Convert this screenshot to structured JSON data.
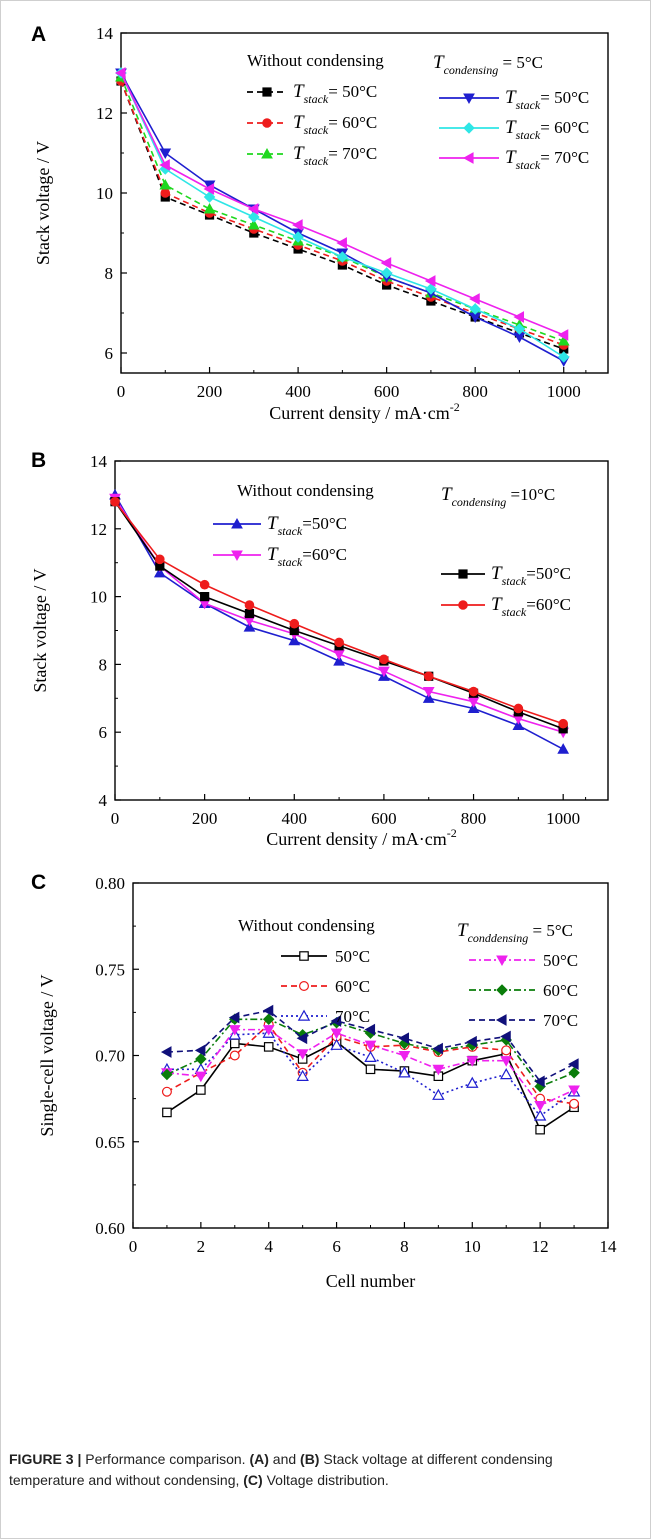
{
  "caption": {
    "label": "FIGURE 3 |",
    "t1": " Performance comparison. ",
    "b1": "(A)",
    "t2": " and ",
    "b2": "(B)",
    "t3": " Stack voltage at different condensing temperature and without condensing, ",
    "b3": "(C)",
    "t4": " Voltage distribution."
  },
  "colors": {
    "black": "#000000",
    "red": "#ee1c1c",
    "green": "#1fd81f",
    "blue": "#1f1fcf",
    "cyan": "#2ee6e6",
    "magenta": "#ee22ee",
    "dkgreen": "#0a7d0a",
    "navy": "#10107a"
  },
  "chart_data": [
    {
      "type": "line",
      "panel": "A",
      "xlabel": "Current density / mA·cm",
      "xlabel_sup": "-2",
      "ylabel": "Stack voltage / V",
      "xlim": [
        0,
        1100
      ],
      "ylim": [
        5.5,
        14
      ],
      "xticks": [
        0,
        200,
        400,
        600,
        800,
        1000
      ],
      "yticks": [
        6,
        8,
        10,
        12,
        14
      ],
      "grid": false,
      "legend_groups": [
        {
          "title": "Without condensing",
          "title_italic_sub": null,
          "position": "top-left"
        },
        {
          "title_T": "T",
          "title_sub": "condensing",
          "title_rest": " = 5°C",
          "position": "top-right"
        }
      ],
      "series": [
        {
          "name": "T",
          "sub": "stack",
          "rest": "= 50°C",
          "group": 0,
          "color": "black",
          "dash": true,
          "marker": "square",
          "x": [
            0,
            100,
            200,
            300,
            400,
            500,
            600,
            700,
            800,
            900,
            1000
          ],
          "y": [
            12.8,
            9.9,
            9.45,
            9.0,
            8.6,
            8.2,
            7.7,
            7.3,
            6.9,
            6.5,
            6.1
          ]
        },
        {
          "name": "T",
          "sub": "stack",
          "rest": "= 60°C",
          "group": 0,
          "color": "red",
          "dash": true,
          "marker": "circle",
          "x": [
            0,
            100,
            200,
            300,
            400,
            500,
            600,
            700,
            800,
            900,
            1000
          ],
          "y": [
            12.8,
            10.0,
            9.5,
            9.1,
            8.7,
            8.3,
            7.8,
            7.4,
            7.0,
            6.6,
            6.2
          ]
        },
        {
          "name": "T",
          "sub": "stack",
          "rest": "= 70°C",
          "group": 0,
          "color": "green",
          "dash": true,
          "marker": "triangle-up",
          "x": [
            0,
            100,
            200,
            300,
            400,
            500,
            600,
            700,
            800,
            900,
            1000
          ],
          "y": [
            12.9,
            10.2,
            9.6,
            9.2,
            8.8,
            8.4,
            7.9,
            7.5,
            7.1,
            6.7,
            6.3
          ]
        },
        {
          "name": "T",
          "sub": "stack",
          "rest": "= 50°C",
          "group": 1,
          "color": "blue",
          "dash": false,
          "marker": "triangle-down",
          "x": [
            0,
            100,
            200,
            300,
            400,
            500,
            600,
            700,
            800,
            900,
            1000
          ],
          "y": [
            13.0,
            11.0,
            10.2,
            9.6,
            9.0,
            8.5,
            7.9,
            7.5,
            6.9,
            6.4,
            5.8
          ]
        },
        {
          "name": "T",
          "sub": "stack",
          "rest": "= 60°C",
          "group": 1,
          "color": "cyan",
          "dash": false,
          "marker": "diamond",
          "x": [
            0,
            100,
            200,
            300,
            400,
            500,
            600,
            700,
            800,
            900,
            1000
          ],
          "y": [
            13.0,
            10.6,
            9.9,
            9.4,
            8.9,
            8.4,
            8.0,
            7.6,
            7.1,
            6.6,
            5.9
          ]
        },
        {
          "name": "T",
          "sub": "stack",
          "rest": "= 70°C",
          "group": 1,
          "color": "magenta",
          "dash": false,
          "marker": "triangle-left",
          "x": [
            0,
            100,
            200,
            300,
            400,
            500,
            600,
            700,
            800,
            900,
            1000
          ],
          "y": [
            13.0,
            10.7,
            10.1,
            9.6,
            9.2,
            8.75,
            8.25,
            7.8,
            7.35,
            6.9,
            6.45
          ]
        }
      ]
    },
    {
      "type": "line",
      "panel": "B",
      "xlabel": "Current density / mA·cm",
      "xlabel_sup": "-2",
      "ylabel": "Stack voltage / V",
      "xlim": [
        0,
        1100
      ],
      "ylim": [
        4,
        14
      ],
      "xticks": [
        0,
        200,
        400,
        600,
        800,
        1000
      ],
      "yticks": [
        4,
        6,
        8,
        10,
        12,
        14
      ],
      "grid": false,
      "legend_groups": [
        {
          "title": "Without condensing",
          "position": "top-left"
        },
        {
          "title_T": "T",
          "title_sub": "condensing",
          "title_rest": " =10°C",
          "position": "top-right"
        }
      ],
      "series": [
        {
          "name": "T",
          "sub": "stack",
          "rest": "=50°C",
          "group": 0,
          "color": "blue",
          "dash": false,
          "marker": "triangle-up",
          "x": [
            0,
            100,
            200,
            300,
            400,
            500,
            600,
            700,
            800,
            900,
            1000
          ],
          "y": [
            13.0,
            10.7,
            9.8,
            9.1,
            8.7,
            8.1,
            7.65,
            7.0,
            6.7,
            6.2,
            5.5
          ]
        },
        {
          "name": "T",
          "sub": "stack",
          "rest": "=60°C",
          "group": 0,
          "color": "magenta",
          "dash": false,
          "marker": "triangle-down",
          "x": [
            0,
            100,
            200,
            300,
            400,
            500,
            600,
            700,
            800,
            900,
            1000
          ],
          "y": [
            12.9,
            10.9,
            9.8,
            9.3,
            8.9,
            8.3,
            7.8,
            7.2,
            6.9,
            6.4,
            6.0
          ]
        },
        {
          "name": "T",
          "sub": "stack",
          "rest": "=50°C",
          "group": 1,
          "color": "black",
          "dash": false,
          "marker": "square",
          "x": [
            0,
            100,
            200,
            300,
            400,
            500,
            600,
            700,
            800,
            900,
            1000
          ],
          "y": [
            12.8,
            10.9,
            10.0,
            9.5,
            9.0,
            8.55,
            8.1,
            7.65,
            7.15,
            6.6,
            6.1
          ]
        },
        {
          "name": "T",
          "sub": "stack",
          "rest": "=60°C",
          "group": 1,
          "color": "red",
          "dash": false,
          "marker": "circle",
          "x": [
            0,
            100,
            200,
            300,
            400,
            500,
            600,
            700,
            800,
            900,
            1000
          ],
          "y": [
            12.8,
            11.1,
            10.35,
            9.75,
            9.2,
            8.65,
            8.15,
            7.65,
            7.2,
            6.7,
            6.25
          ]
        }
      ]
    },
    {
      "type": "line",
      "panel": "C",
      "xlabel": "Cell number",
      "ylabel": "Single-cell voltage / V",
      "xlim": [
        0,
        14
      ],
      "ylim": [
        0.6,
        0.8
      ],
      "xticks": [
        0,
        2,
        4,
        6,
        8,
        10,
        12,
        14
      ],
      "yticks": [
        "0.60",
        "0.65",
        "0.70",
        "0.75",
        "0.80"
      ],
      "grid": false,
      "legend_groups": [
        {
          "title": "Without condensing",
          "position": "top-left"
        },
        {
          "title_T": "T",
          "title_sub": "conddensing",
          "title_rest": " = 5°C",
          "position": "top-right"
        }
      ],
      "series": [
        {
          "name": "50°C",
          "group": 0,
          "color": "black",
          "dash": false,
          "marker": "square-open",
          "x": [
            1,
            2,
            3,
            4,
            5,
            6,
            7,
            8,
            9,
            10,
            11,
            12,
            13
          ],
          "y": [
            0.667,
            0.68,
            0.707,
            0.705,
            0.698,
            0.708,
            0.692,
            0.691,
            0.688,
            0.697,
            0.701,
            0.657,
            0.67
          ]
        },
        {
          "name": "60°C",
          "group": 0,
          "color": "red",
          "dash": true,
          "marker": "circle-open",
          "x": [
            1,
            2,
            3,
            4,
            5,
            6,
            7,
            8,
            9,
            10,
            11,
            12,
            13
          ],
          "y": [
            0.679,
            0.69,
            0.7,
            0.718,
            0.69,
            0.711,
            0.705,
            0.706,
            0.702,
            0.705,
            0.703,
            0.675,
            0.672
          ]
        },
        {
          "name": "70°C",
          "group": 0,
          "color": "blue",
          "dash": "dot",
          "marker": "triangle-up-open",
          "x": [
            1,
            2,
            3,
            4,
            5,
            6,
            7,
            8,
            9,
            10,
            11,
            12,
            13
          ],
          "y": [
            0.692,
            0.692,
            0.712,
            0.713,
            0.688,
            0.706,
            0.699,
            0.69,
            0.677,
            0.684,
            0.689,
            0.665,
            0.679
          ]
        },
        {
          "name": "50°C",
          "group": 1,
          "color": "magenta",
          "dash": "dashdot",
          "marker": "triangle-down",
          "x": [
            1,
            2,
            3,
            4,
            5,
            6,
            7,
            8,
            9,
            10,
            11,
            12,
            13
          ],
          "y": [
            0.69,
            0.688,
            0.715,
            0.715,
            0.701,
            0.713,
            0.706,
            0.7,
            0.692,
            0.697,
            0.697,
            0.671,
            0.68
          ]
        },
        {
          "name": "60°C",
          "group": 1,
          "color": "dkgreen",
          "dash": "dashdot",
          "marker": "diamond",
          "x": [
            1,
            2,
            3,
            4,
            5,
            6,
            7,
            8,
            9,
            10,
            11,
            12,
            13
          ],
          "y": [
            0.689,
            0.698,
            0.721,
            0.721,
            0.712,
            0.719,
            0.713,
            0.707,
            0.703,
            0.706,
            0.709,
            0.682,
            0.69
          ]
        },
        {
          "name": "70°C",
          "group": 1,
          "color": "navy",
          "dash": "dash",
          "marker": "triangle-left",
          "x": [
            1,
            2,
            3,
            4,
            5,
            6,
            7,
            8,
            9,
            10,
            11,
            12,
            13
          ],
          "y": [
            0.702,
            0.703,
            0.722,
            0.726,
            0.71,
            0.72,
            0.715,
            0.71,
            0.704,
            0.708,
            0.711,
            0.685,
            0.695
          ]
        }
      ]
    }
  ]
}
